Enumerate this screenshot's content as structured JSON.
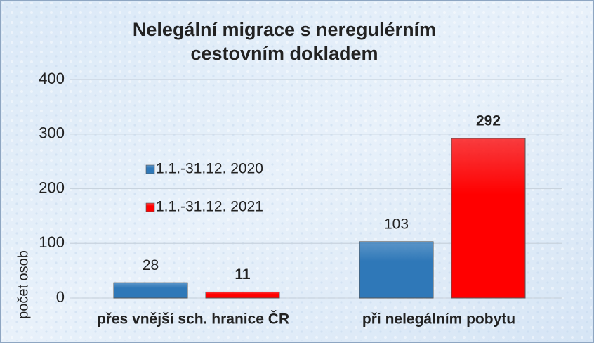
{
  "chart_data": {
    "type": "bar",
    "title": [
      "Nelegální migrace  s neregulérním",
      "cestovním dokladem"
    ],
    "y_label": "počet osob",
    "categories": [
      "přes vnější sch. hranice ČR",
      "při nelegálním pobytu"
    ],
    "series": [
      {
        "name": "1.1.-31.12. 2020",
        "color": "#2f78b8",
        "values": [
          28,
          103
        ]
      },
      {
        "name": "1.1.-31.12. 2021",
        "color": "#ff0000",
        "values": [
          11,
          292
        ]
      }
    ],
    "ylim": [
      0,
      400
    ],
    "yticks": [
      0,
      100,
      200,
      300,
      400
    ],
    "grid": true
  }
}
